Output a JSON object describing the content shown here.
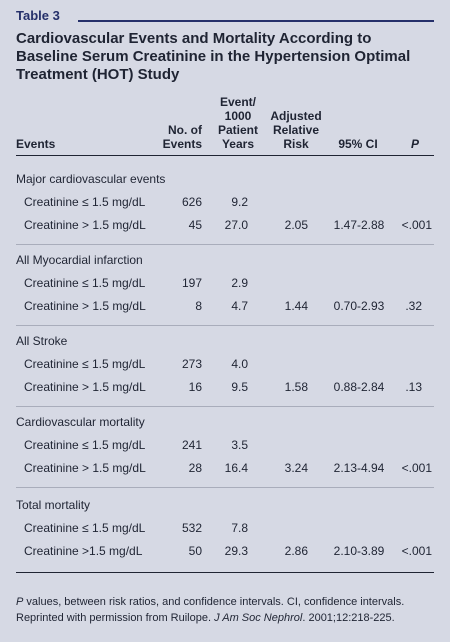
{
  "table_tag": "Table 3",
  "title": "Cardiovascular Events and Mortality According to Baseline Serum Creatinine in the Hypertension Optimal Treatment (HOT) Study",
  "headers": {
    "events": "Events",
    "num_events_1": "No. of",
    "num_events_2": "Events",
    "rate_1": "Event/",
    "rate_2": "1000",
    "rate_3": "Patient",
    "rate_4": "Years",
    "risk_1": "Adjusted",
    "risk_2": "Relative",
    "risk_3": "Risk",
    "ci": "95% CI",
    "p": "P"
  },
  "sections": [
    {
      "title": "Major cardiovascular events",
      "rows": [
        {
          "label": "Creatinine ≤ 1.5 mg/dL",
          "n": "626",
          "rate": "9.2",
          "rr": "",
          "ci": "",
          "p": ""
        },
        {
          "label": "Creatinine > 1.5 mg/dL",
          "n": "45",
          "rate": "27.0",
          "rr": "2.05",
          "ci": "1.47-2.88",
          "p": "<.001"
        }
      ]
    },
    {
      "title": "All Myocardial infarction",
      "rows": [
        {
          "label": "Creatinine ≤ 1.5 mg/dL",
          "n": "197",
          "rate": "2.9",
          "rr": "",
          "ci": "",
          "p": ""
        },
        {
          "label": "Creatinine > 1.5 mg/dL",
          "n": "8",
          "rate": "4.7",
          "rr": "1.44",
          "ci": "0.70-2.93",
          "p": ".32"
        }
      ]
    },
    {
      "title": "All Stroke",
      "rows": [
        {
          "label": "Creatinine ≤ 1.5 mg/dL",
          "n": "273",
          "rate": "4.0",
          "rr": "",
          "ci": "",
          "p": ""
        },
        {
          "label": "Creatinine > 1.5 mg/dL",
          "n": "16",
          "rate": "9.5",
          "rr": "1.58",
          "ci": "0.88-2.84",
          "p": ".13"
        }
      ]
    },
    {
      "title": "Cardiovascular mortality",
      "rows": [
        {
          "label": "Creatinine ≤ 1.5 mg/dL",
          "n": "241",
          "rate": "3.5",
          "rr": "",
          "ci": "",
          "p": ""
        },
        {
          "label": "Creatinine > 1.5 mg/dL",
          "n": "28",
          "rate": "16.4",
          "rr": "3.24",
          "ci": "2.13-4.94",
          "p": "<.001"
        }
      ]
    },
    {
      "title": "Total mortality",
      "rows": [
        {
          "label": "Creatinine ≤ 1.5 mg/dL",
          "n": "532",
          "rate": "7.8",
          "rr": "",
          "ci": "",
          "p": ""
        },
        {
          "label": "Creatinine >1.5 mg/dL",
          "n": "50",
          "rate": "29.3",
          "rr": "2.86",
          "ci": "2.10-3.89",
          "p": "<.001"
        }
      ]
    }
  ],
  "footnote": {
    "p_symbol": "P",
    "line1_rest": " values, between risk ratios, and confidence intervals.  CI, confidence intervals.",
    "line2_pre": "Reprinted with permission from Ruilope. ",
    "journal": "J Am Soc Nephrol",
    "line2_post": ". 2001;12:218-225."
  }
}
